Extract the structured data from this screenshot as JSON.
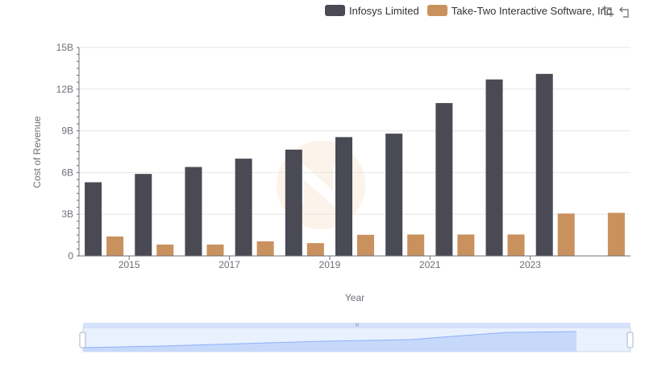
{
  "legend": {
    "items": [
      {
        "name": "Infosys Limited",
        "color": "#4a4a55"
      },
      {
        "name": "Take-Two Interactive Software, Inc.",
        "color": "#c8915e"
      }
    ]
  },
  "toolbox": {
    "icons": [
      "zoom-icon",
      "restore-icon"
    ]
  },
  "chart_data": {
    "type": "bar",
    "xlabel": "Year",
    "ylabel": "Cost of Revenue",
    "categories": [
      "2014",
      "2015",
      "2016",
      "2017",
      "2018",
      "2019",
      "2020",
      "2021",
      "2022",
      "2023",
      "2024"
    ],
    "x_tick_labels": [
      "2015",
      "2017",
      "2019",
      "2021",
      "2023"
    ],
    "y_tick_labels": [
      "0",
      "3B",
      "6B",
      "9B",
      "12B",
      "15B"
    ],
    "ylim": [
      0,
      15000000000
    ],
    "grid": true,
    "legend_position": "top-right",
    "series": [
      {
        "name": "Infosys Limited",
        "color": "#4a4a55",
        "values": [
          5300000000,
          5900000000,
          6400000000,
          7000000000,
          7650000000,
          8550000000,
          8800000000,
          11000000000,
          12700000000,
          13100000000,
          null
        ]
      },
      {
        "name": "Take-Two Interactive Software, Inc.",
        "color": "#c8915e",
        "values": [
          1400000000,
          820000000,
          820000000,
          1050000000,
          920000000,
          1520000000,
          1540000000,
          1540000000,
          1540000000,
          3050000000,
          3100000000
        ]
      }
    ]
  },
  "datazoom": {
    "handle_label": "III",
    "fill_color": "#d6e2fb",
    "line_color": "#8fb0f7"
  }
}
